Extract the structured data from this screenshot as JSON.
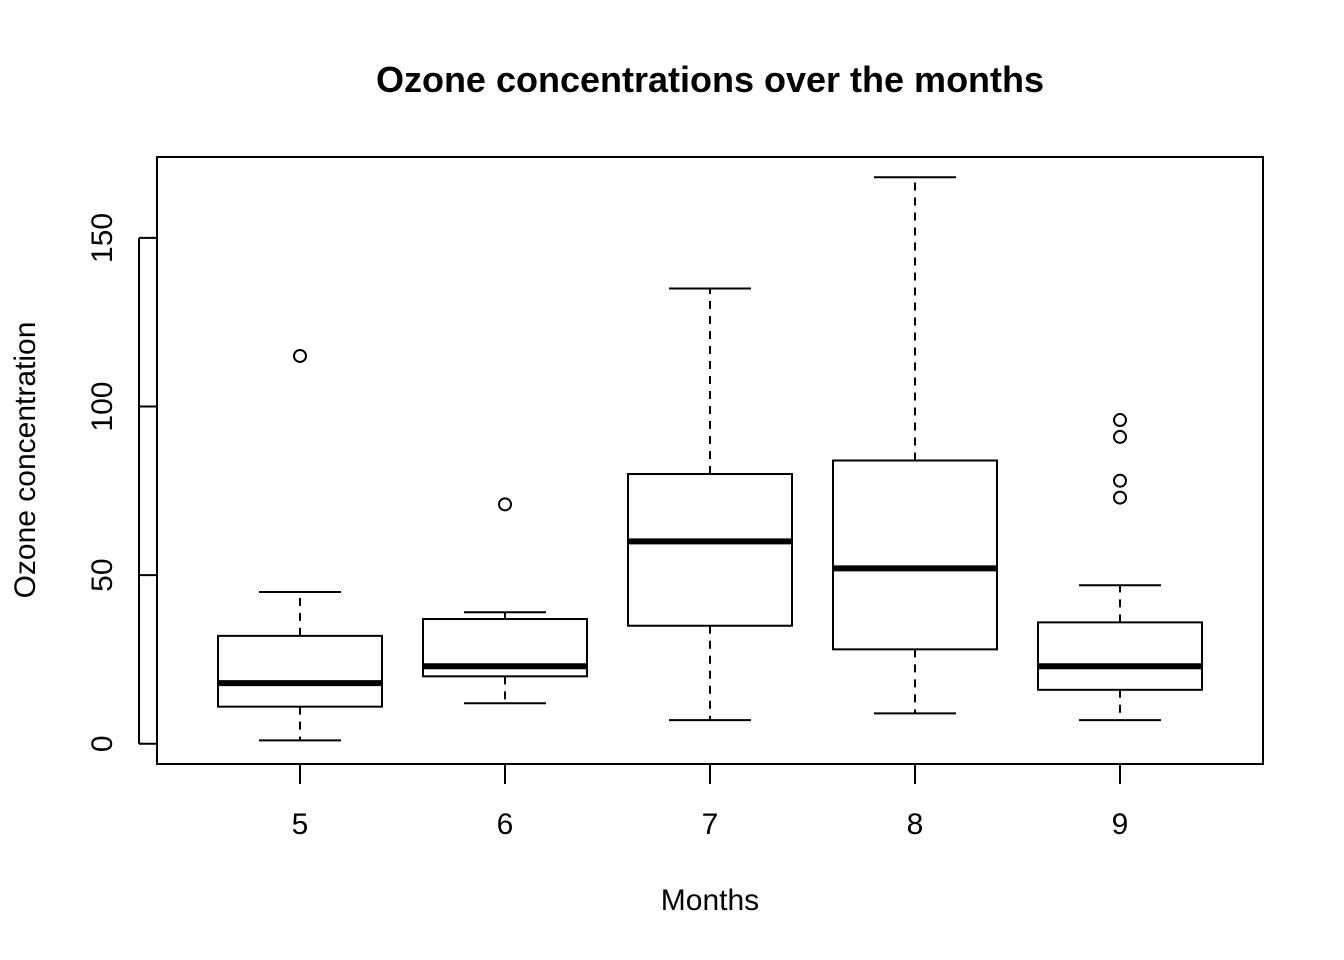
{
  "chart_data": {
    "type": "box",
    "title": "Ozone concentrations over the months",
    "xlabel": "Months",
    "ylabel": "Ozone concentration",
    "categories": [
      "5",
      "6",
      "7",
      "8",
      "9"
    ],
    "y_ticks": [
      0,
      50,
      100,
      150
    ],
    "y_tick_labels": [
      "0",
      "50",
      "100",
      "150"
    ],
    "ylim": [
      -6,
      174
    ],
    "boxes": [
      {
        "category": "5",
        "whisker_low": 1,
        "q1": 11,
        "median": 18,
        "q3": 32,
        "whisker_high": 45,
        "outliers": [
          115
        ]
      },
      {
        "category": "6",
        "whisker_low": 12,
        "q1": 20,
        "median": 23,
        "q3": 37,
        "whisker_high": 39,
        "outliers": [
          71
        ]
      },
      {
        "category": "7",
        "whisker_low": 7,
        "q1": 35,
        "median": 60,
        "q3": 80,
        "whisker_high": 135,
        "outliers": []
      },
      {
        "category": "8",
        "whisker_low": 9,
        "q1": 28,
        "median": 52,
        "q3": 84,
        "whisker_high": 168,
        "outliers": []
      },
      {
        "category": "9",
        "whisker_low": 7,
        "q1": 16,
        "median": 23,
        "q3": 36,
        "whisker_high": 47,
        "outliers": [
          73,
          78,
          91,
          96
        ]
      }
    ],
    "grid": false,
    "colors": {
      "stroke": "#000000",
      "box_fill": "#ffffff"
    }
  }
}
